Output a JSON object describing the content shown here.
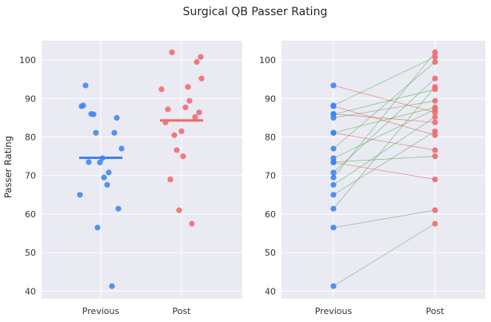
{
  "chart_data": {
    "title": "Surgical QB Passer Rating",
    "type": "scatter",
    "categories": [
      "Previous",
      "Post"
    ],
    "ylabel": "Passer Rating",
    "ylim": [
      38,
      105
    ],
    "yticks": [
      40,
      50,
      60,
      70,
      80,
      90,
      100
    ],
    "grid": true,
    "colors": {
      "previous": "#3f84f0",
      "post": "#f0696c",
      "improved": "#3c9a3c",
      "declined": "#e8383d",
      "background": "#eaeaf2",
      "grid": "#ffffff"
    },
    "panels": [
      {
        "kind": "strip",
        "means": {
          "previous": 74.6,
          "post": 84.3
        },
        "previous": [
          93.4,
          88.2,
          88.0,
          86.0,
          85.9,
          85.0,
          81.1,
          81.1,
          77.0,
          74.5,
          73.5,
          73.4,
          70.8,
          69.5,
          67.6,
          65.0,
          61.4,
          56.5,
          41.3
        ],
        "post": [
          102.0,
          100.8,
          99.5,
          95.2,
          93.0,
          92.4,
          89.4,
          87.7,
          87.2,
          86.4,
          85.2,
          83.8,
          81.5,
          80.5,
          76.6,
          75.0,
          69.0,
          61.0,
          57.5
        ]
      },
      {
        "kind": "paired",
        "pairs": [
          [
            93.4,
            86.4
          ],
          [
            88.2,
            100.8
          ],
          [
            88.0,
            80.5
          ],
          [
            86.0,
            83.8
          ],
          [
            85.9,
            92.4
          ],
          [
            85.0,
            89.4
          ],
          [
            81.1,
            87.7
          ],
          [
            81.1,
            76.6
          ],
          [
            77.0,
            99.5
          ],
          [
            74.5,
            87.2
          ],
          [
            73.5,
            75.0
          ],
          [
            73.4,
            69.0
          ],
          [
            70.8,
            95.2
          ],
          [
            69.5,
            102.0
          ],
          [
            67.6,
            85.2
          ],
          [
            65.0,
            81.5
          ],
          [
            61.4,
            93.0
          ],
          [
            56.5,
            61.0
          ],
          [
            41.3,
            57.5
          ]
        ]
      }
    ]
  }
}
